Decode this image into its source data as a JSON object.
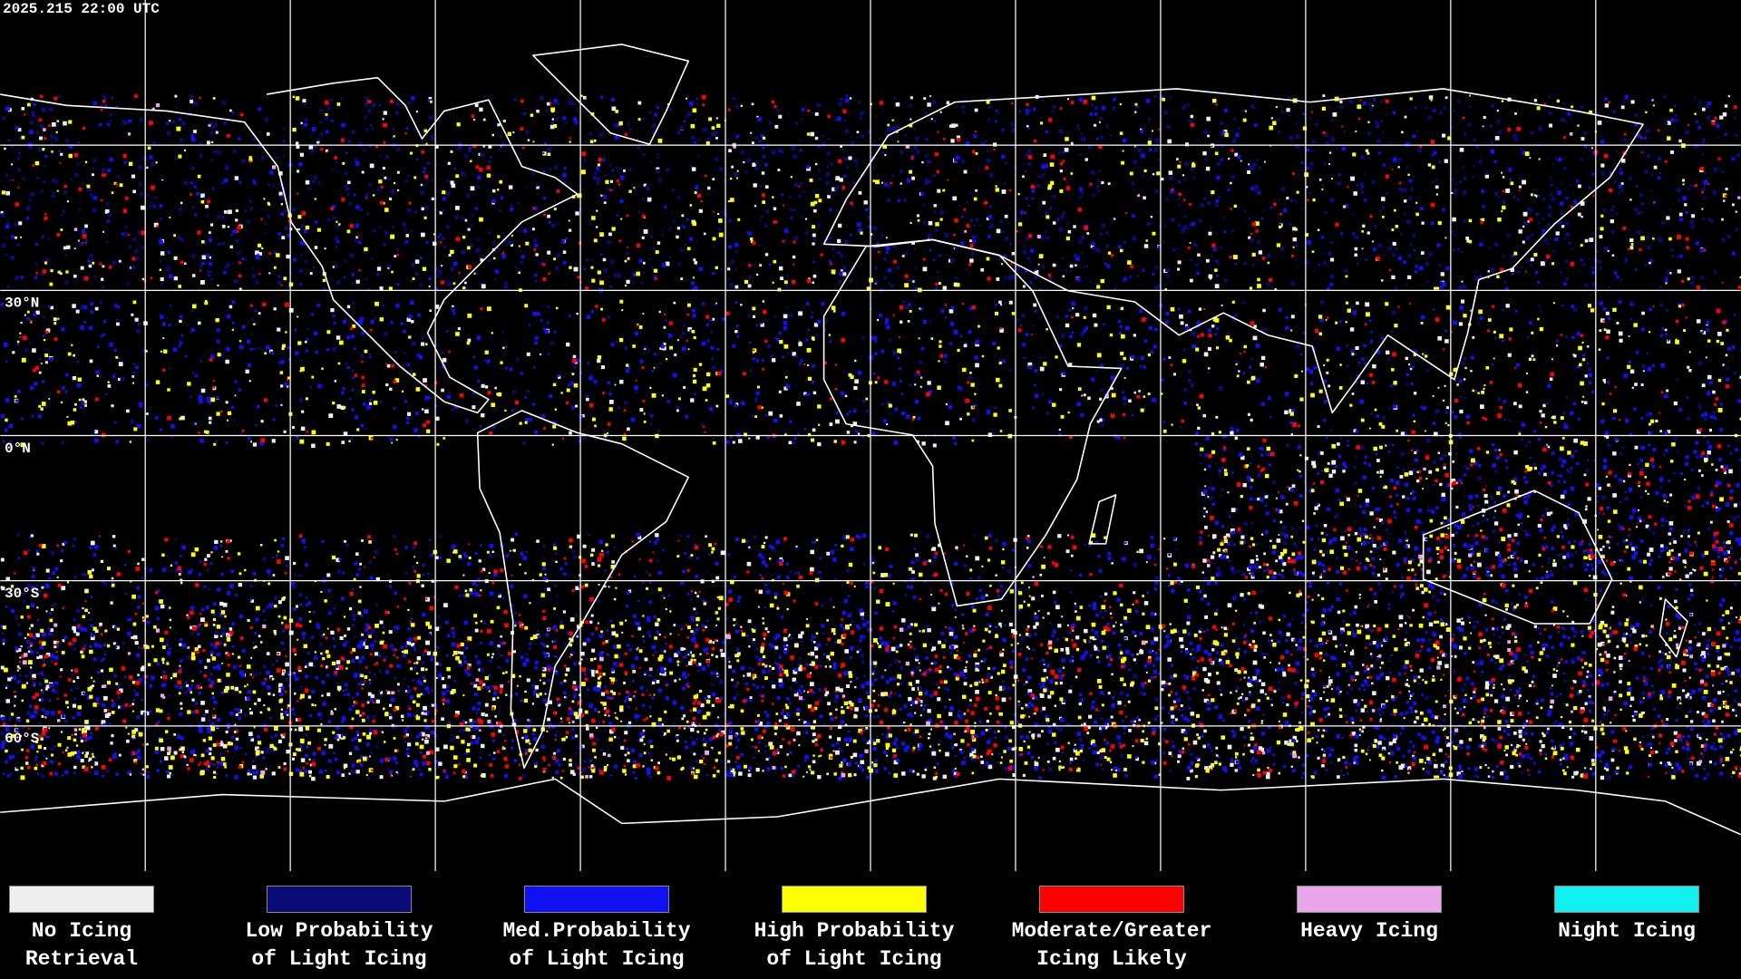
{
  "header": {
    "timestamp": "2025.215 22:00 UTC"
  },
  "map": {
    "latitude_labels": [
      "30°N",
      "0°N",
      "30°S",
      "60°S"
    ]
  },
  "legend": {
    "items": [
      {
        "lines": [
          "No Icing",
          "Retrieval"
        ],
        "color": "#eeeeee"
      },
      {
        "lines": [
          "Low Probability",
          "of Light Icing"
        ],
        "color": "#0a0a78"
      },
      {
        "lines": [
          "Med.Probability",
          "of Light Icing"
        ],
        "color": "#1010f0"
      },
      {
        "lines": [
          "High Probability",
          "of Light Icing"
        ],
        "color": "#ffff00"
      },
      {
        "lines": [
          "Moderate/Greater",
          "Icing Likely"
        ],
        "color": "#ff0000"
      },
      {
        "lines": [
          "Heavy Icing"
        ],
        "color": "#e8a5e8"
      },
      {
        "lines": [
          "Night Icing"
        ],
        "color": "#10f0f0"
      }
    ]
  }
}
